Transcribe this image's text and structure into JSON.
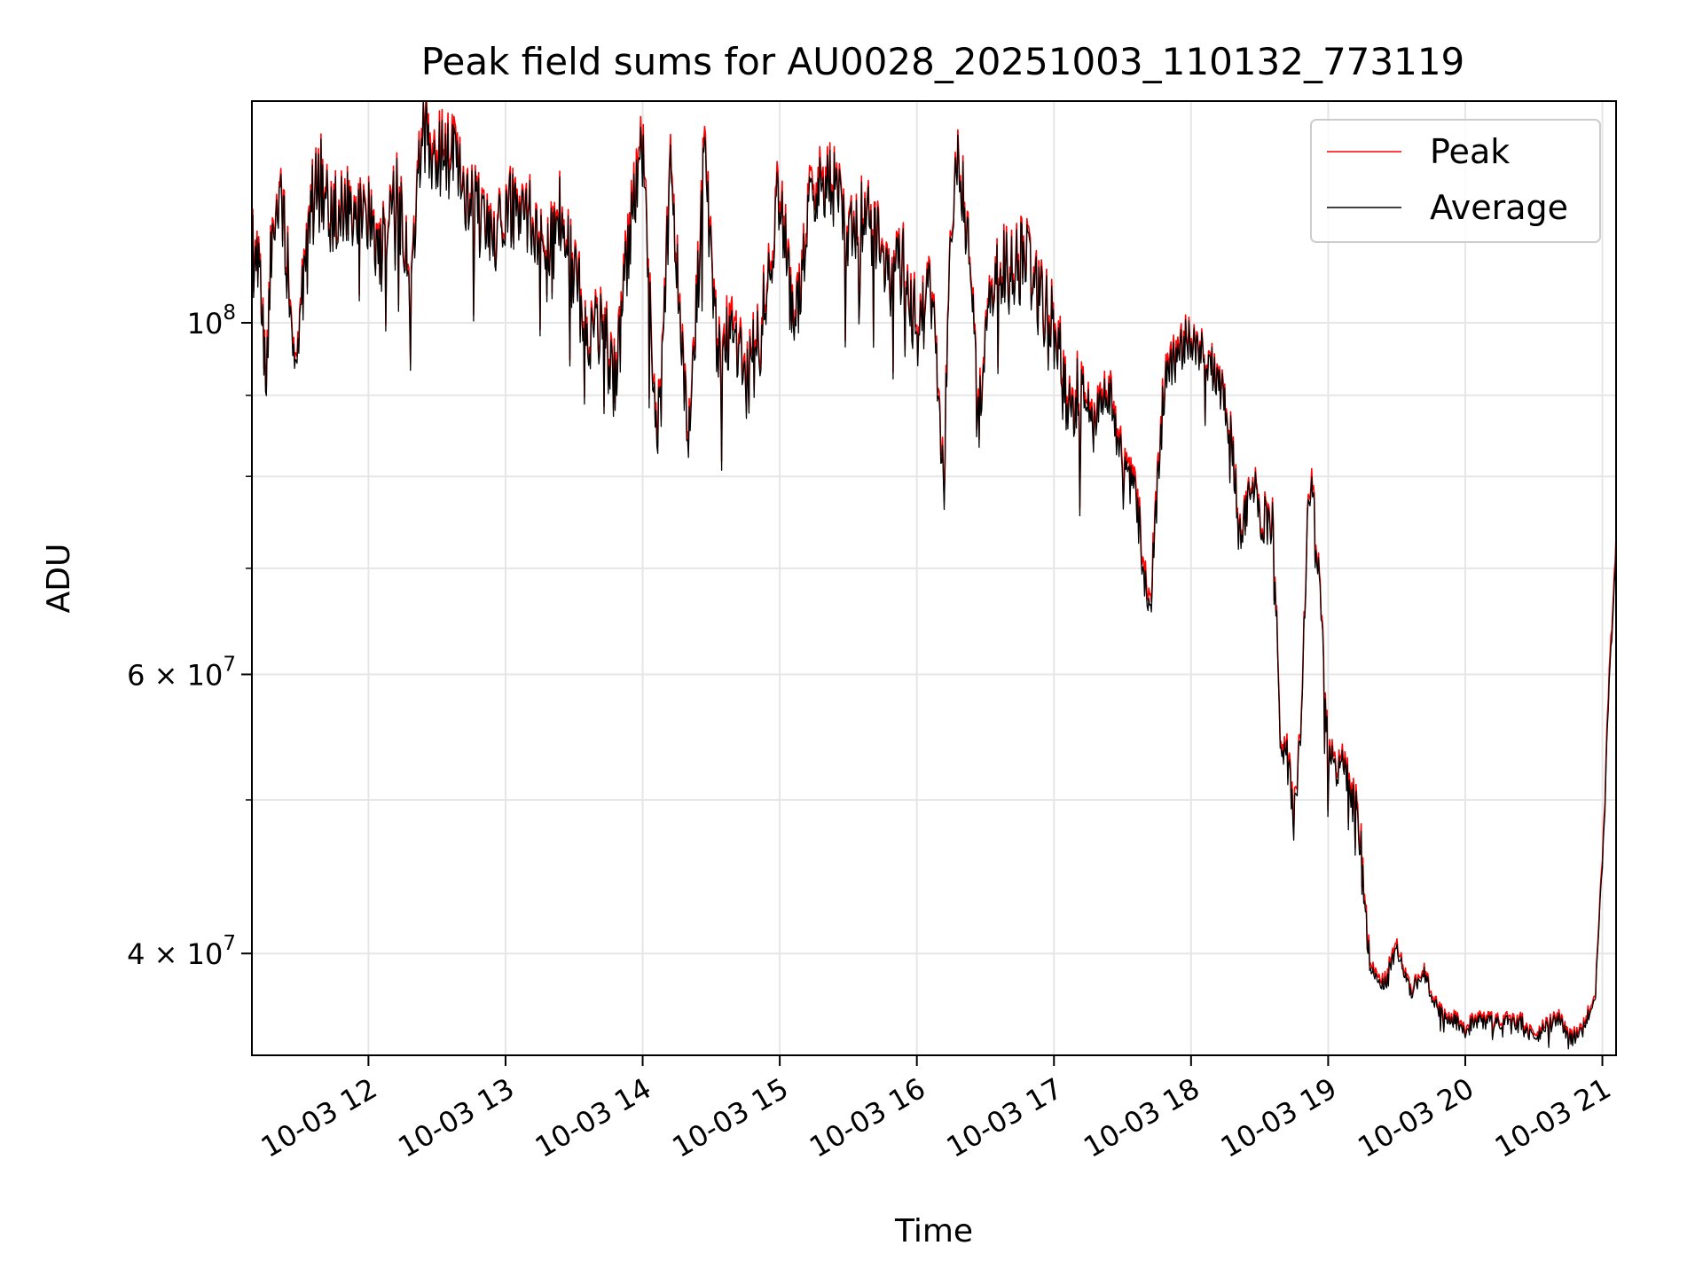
{
  "chart_data": {
    "type": "line",
    "title": "Peak field sums for AU0028_20251003_110132_773119",
    "xlabel": "Time",
    "ylabel": "ADU",
    "yscale": "log",
    "ylim": [
      34500000,
      138000000
    ],
    "xlim_hours": [
      11.15,
      21.1
    ],
    "grid": true,
    "legend": {
      "position": "top-right",
      "entries": [
        "Peak",
        "Average"
      ]
    },
    "x_ticks": [
      {
        "value": 12,
        "label": "10-03 12"
      },
      {
        "value": 13,
        "label": "10-03 13"
      },
      {
        "value": 14,
        "label": "10-03 14"
      },
      {
        "value": 15,
        "label": "10-03 15"
      },
      {
        "value": 16,
        "label": "10-03 16"
      },
      {
        "value": 17,
        "label": "10-03 17"
      },
      {
        "value": 18,
        "label": "10-03 18"
      },
      {
        "value": 19,
        "label": "10-03 19"
      },
      {
        "value": 20,
        "label": "10-03 20"
      },
      {
        "value": 21,
        "label": "10-03 21"
      }
    ],
    "y_ticks": [
      {
        "value": 100000000,
        "label": "10",
        "exp": "8"
      },
      {
        "value": 60000000,
        "label": "6 × 10",
        "exp": "7"
      },
      {
        "value": 40000000,
        "label": "4 × 10",
        "exp": "7"
      }
    ],
    "y_minor_ticks": [
      90000000,
      80000000,
      70000000,
      50000000
    ],
    "series": [
      {
        "name": "Peak",
        "color": "#ff0000",
        "anchors": [
          [
            11.15,
            112000000
          ],
          [
            11.22,
            105000000
          ],
          [
            11.25,
            93000000
          ],
          [
            11.3,
            115000000
          ],
          [
            11.35,
            122000000
          ],
          [
            11.4,
            112000000
          ],
          [
            11.45,
            100000000
          ],
          [
            11.5,
            102000000
          ],
          [
            11.55,
            110000000
          ],
          [
            11.6,
            122000000
          ],
          [
            11.65,
            125000000
          ],
          [
            11.7,
            119000000
          ],
          [
            11.8,
            118000000
          ],
          [
            11.9,
            120000000
          ],
          [
            12.0,
            117000000
          ],
          [
            12.1,
            112000000
          ],
          [
            12.2,
            123000000
          ],
          [
            12.3,
            108000000
          ],
          [
            12.4,
            135000000
          ],
          [
            12.5,
            128000000
          ],
          [
            12.6,
            130000000
          ],
          [
            12.7,
            122000000
          ],
          [
            12.8,
            118000000
          ],
          [
            12.9,
            114000000
          ],
          [
            13.0,
            120000000
          ],
          [
            13.1,
            117000000
          ],
          [
            13.2,
            118000000
          ],
          [
            13.3,
            110000000
          ],
          [
            13.4,
            118000000
          ],
          [
            13.5,
            108000000
          ],
          [
            13.6,
            100000000
          ],
          [
            13.7,
            101000000
          ],
          [
            13.8,
            92000000
          ],
          [
            13.9,
            115000000
          ],
          [
            14.0,
            132000000
          ],
          [
            14.1,
            86000000
          ],
          [
            14.15,
            95000000
          ],
          [
            14.2,
            128000000
          ],
          [
            14.3,
            92000000
          ],
          [
            14.35,
            86000000
          ],
          [
            14.45,
            130000000
          ],
          [
            14.55,
            96000000
          ],
          [
            14.65,
            100000000
          ],
          [
            14.75,
            93000000
          ],
          [
            14.85,
            98000000
          ],
          [
            15.0,
            125000000
          ],
          [
            15.1,
            98000000
          ],
          [
            15.2,
            118000000
          ],
          [
            15.3,
            125000000
          ],
          [
            15.4,
            122000000
          ],
          [
            15.5,
            115000000
          ],
          [
            15.6,
            118000000
          ],
          [
            15.7,
            114000000
          ],
          [
            15.8,
            108000000
          ],
          [
            15.9,
            110000000
          ],
          [
            16.0,
            100000000
          ],
          [
            16.1,
            106000000
          ],
          [
            16.2,
            82000000
          ],
          [
            16.25,
            115000000
          ],
          [
            16.3,
            126000000
          ],
          [
            16.35,
            120000000
          ],
          [
            16.4,
            104000000
          ],
          [
            16.45,
            86000000
          ],
          [
            16.5,
            100000000
          ],
          [
            16.6,
            110000000
          ],
          [
            16.7,
            108000000
          ],
          [
            16.8,
            112000000
          ],
          [
            16.9,
            104000000
          ],
          [
            17.0,
            100000000
          ],
          [
            17.05,
            95000000
          ],
          [
            17.1,
            88000000
          ],
          [
            17.2,
            92000000
          ],
          [
            17.3,
            88000000
          ],
          [
            17.4,
            92000000
          ],
          [
            17.5,
            82000000
          ],
          [
            17.6,
            78000000
          ],
          [
            17.7,
            66000000
          ],
          [
            17.8,
            93000000
          ],
          [
            17.9,
            96000000
          ],
          [
            18.0,
            99000000
          ],
          [
            18.1,
            95000000
          ],
          [
            18.2,
            93000000
          ],
          [
            18.3,
            85000000
          ],
          [
            18.35,
            74000000
          ],
          [
            18.45,
            80000000
          ],
          [
            18.5,
            76000000
          ],
          [
            18.6,
            75000000
          ],
          [
            18.65,
            56000000
          ],
          [
            18.7,
            54000000
          ],
          [
            18.75,
            49000000
          ],
          [
            18.8,
            56000000
          ],
          [
            18.85,
            75000000
          ],
          [
            18.88,
            83000000
          ],
          [
            18.92,
            72000000
          ],
          [
            19.0,
            54000000
          ],
          [
            19.05,
            52000000
          ],
          [
            19.1,
            55000000
          ],
          [
            19.15,
            51000000
          ],
          [
            19.2,
            50000000
          ],
          [
            19.25,
            46000000
          ],
          [
            19.3,
            39500000
          ],
          [
            19.4,
            38500000
          ],
          [
            19.5,
            40500000
          ],
          [
            19.6,
            38000000
          ],
          [
            19.7,
            39000000
          ],
          [
            19.8,
            37000000
          ],
          [
            19.9,
            36500000
          ],
          [
            20.0,
            36000000
          ],
          [
            20.1,
            36500000
          ],
          [
            20.2,
            36300000
          ],
          [
            20.3,
            36500000
          ],
          [
            20.4,
            36400000
          ],
          [
            20.5,
            35500000
          ],
          [
            20.6,
            36200000
          ],
          [
            20.7,
            36500000
          ],
          [
            20.75,
            35400000
          ],
          [
            20.85,
            35800000
          ],
          [
            20.95,
            38000000
          ],
          [
            21.0,
            46000000
          ],
          [
            21.05,
            60000000
          ],
          [
            21.1,
            73000000
          ]
        ]
      },
      {
        "name": "Average",
        "color": "#000000",
        "anchors": [
          [
            11.15,
            111000000
          ],
          [
            11.22,
            104000000
          ],
          [
            11.25,
            92000000
          ],
          [
            11.3,
            114000000
          ],
          [
            11.35,
            121000000
          ],
          [
            11.4,
            111000000
          ],
          [
            11.45,
            99000000
          ],
          [
            11.5,
            101000000
          ],
          [
            11.55,
            109000000
          ],
          [
            11.6,
            121000000
          ],
          [
            11.65,
            124000000
          ],
          [
            11.7,
            118000000
          ],
          [
            11.8,
            117000000
          ],
          [
            11.9,
            119000000
          ],
          [
            12.0,
            116000000
          ],
          [
            12.1,
            111000000
          ],
          [
            12.2,
            122000000
          ],
          [
            12.3,
            107000000
          ],
          [
            12.4,
            133000000
          ],
          [
            12.5,
            126000000
          ],
          [
            12.6,
            128000000
          ],
          [
            12.7,
            121000000
          ],
          [
            12.8,
            117000000
          ],
          [
            12.9,
            113000000
          ],
          [
            13.0,
            119000000
          ],
          [
            13.1,
            116000000
          ],
          [
            13.2,
            117000000
          ],
          [
            13.3,
            109000000
          ],
          [
            13.4,
            117000000
          ],
          [
            13.5,
            107000000
          ],
          [
            13.6,
            99000000
          ],
          [
            13.7,
            100000000
          ],
          [
            13.8,
            91000000
          ],
          [
            13.9,
            113000000
          ],
          [
            14.0,
            130000000
          ],
          [
            14.1,
            85000000
          ],
          [
            14.15,
            94000000
          ],
          [
            14.2,
            126000000
          ],
          [
            14.3,
            91000000
          ],
          [
            14.35,
            85000000
          ],
          [
            14.45,
            128000000
          ],
          [
            14.55,
            95000000
          ],
          [
            14.65,
            98000000
          ],
          [
            14.75,
            92000000
          ],
          [
            14.85,
            97000000
          ],
          [
            15.0,
            123000000
          ],
          [
            15.1,
            97000000
          ],
          [
            15.2,
            116000000
          ],
          [
            15.3,
            123000000
          ],
          [
            15.4,
            121000000
          ],
          [
            15.5,
            114000000
          ],
          [
            15.6,
            117000000
          ],
          [
            15.7,
            113000000
          ],
          [
            15.8,
            107000000
          ],
          [
            15.9,
            109000000
          ],
          [
            16.0,
            99000000
          ],
          [
            16.1,
            105000000
          ],
          [
            16.2,
            81000000
          ],
          [
            16.25,
            114000000
          ],
          [
            16.3,
            125000000
          ],
          [
            16.35,
            119000000
          ],
          [
            16.4,
            103000000
          ],
          [
            16.45,
            85000000
          ],
          [
            16.5,
            99000000
          ],
          [
            16.6,
            109000000
          ],
          [
            16.7,
            107000000
          ],
          [
            16.8,
            111000000
          ],
          [
            16.9,
            103000000
          ],
          [
            17.0,
            99000000
          ],
          [
            17.05,
            94000000
          ],
          [
            17.1,
            87000000
          ],
          [
            17.2,
            91000000
          ],
          [
            17.3,
            87000000
          ],
          [
            17.4,
            91000000
          ],
          [
            17.5,
            81000000
          ],
          [
            17.6,
            77000000
          ],
          [
            17.7,
            65000000
          ],
          [
            17.8,
            92000000
          ],
          [
            17.9,
            95000000
          ],
          [
            18.0,
            98500000
          ],
          [
            18.1,
            94500000
          ],
          [
            18.2,
            92500000
          ],
          [
            18.3,
            84500000
          ],
          [
            18.35,
            73500000
          ],
          [
            18.45,
            79500000
          ],
          [
            18.5,
            75500000
          ],
          [
            18.6,
            74500000
          ],
          [
            18.65,
            55500000
          ],
          [
            18.7,
            53500000
          ],
          [
            18.75,
            48500000
          ],
          [
            18.8,
            55500000
          ],
          [
            18.85,
            74500000
          ],
          [
            18.88,
            82000000
          ],
          [
            18.92,
            71500000
          ],
          [
            19.0,
            53500000
          ],
          [
            19.05,
            51500000
          ],
          [
            19.1,
            54500000
          ],
          [
            19.15,
            50500000
          ],
          [
            19.2,
            49500000
          ],
          [
            19.25,
            45500000
          ],
          [
            19.3,
            39200000
          ],
          [
            19.4,
            38200000
          ],
          [
            19.5,
            40200000
          ],
          [
            19.6,
            37800000
          ],
          [
            19.7,
            38800000
          ],
          [
            19.8,
            36800000
          ],
          [
            19.9,
            36300000
          ],
          [
            20.0,
            35800000
          ],
          [
            20.1,
            36300000
          ],
          [
            20.2,
            36100000
          ],
          [
            20.3,
            36300000
          ],
          [
            20.4,
            36200000
          ],
          [
            20.5,
            35300000
          ],
          [
            20.6,
            36000000
          ],
          [
            20.7,
            36300000
          ],
          [
            20.75,
            35200000
          ],
          [
            20.85,
            35600000
          ],
          [
            20.95,
            37800000
          ],
          [
            21.0,
            45500000
          ],
          [
            21.05,
            59000000
          ],
          [
            21.1,
            72000000
          ]
        ]
      }
    ]
  }
}
